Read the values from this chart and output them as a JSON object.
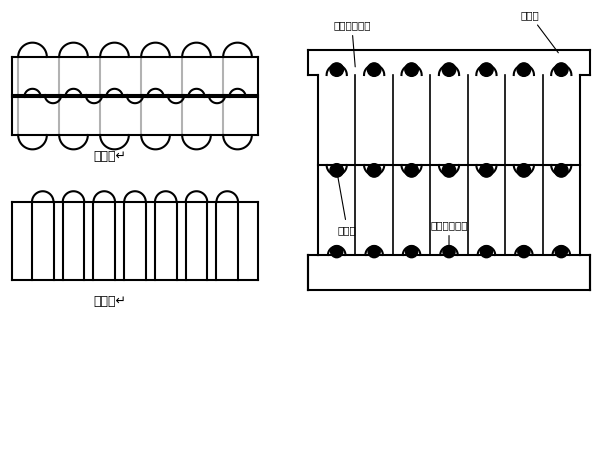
{
  "bg_color": "#ffffff",
  "line_color": "#000000",
  "title_双齿板": "双齿板↵",
  "title_单齿板": "单齿板↵",
  "label_单桫板": "单桔板",
  "label_顶板上层钢筋": "顶板上层钙筋",
  "label_双桫板": "双桔板",
  "label_顶板底层钢筋": "顶板底层钙筋"
}
